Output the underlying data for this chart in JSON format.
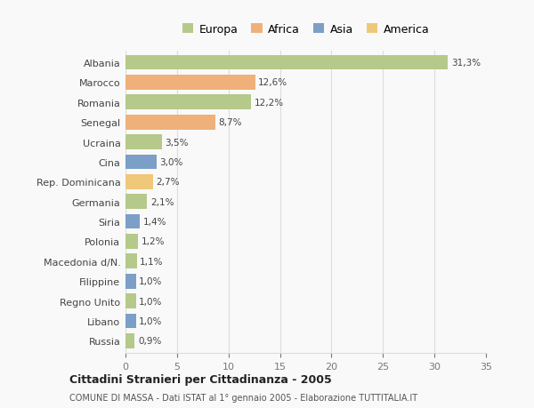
{
  "categories": [
    "Albania",
    "Marocco",
    "Romania",
    "Senegal",
    "Ucraina",
    "Cina",
    "Rep. Dominicana",
    "Germania",
    "Siria",
    "Polonia",
    "Macedonia d/N.",
    "Filippine",
    "Regno Unito",
    "Libano",
    "Russia"
  ],
  "values": [
    31.3,
    12.6,
    12.2,
    8.7,
    3.5,
    3.0,
    2.7,
    2.1,
    1.4,
    1.2,
    1.1,
    1.0,
    1.0,
    1.0,
    0.9
  ],
  "labels": [
    "31,3%",
    "12,6%",
    "12,2%",
    "8,7%",
    "3,5%",
    "3,0%",
    "2,7%",
    "2,1%",
    "1,4%",
    "1,2%",
    "1,1%",
    "1,0%",
    "1,0%",
    "1,0%",
    "0,9%"
  ],
  "colors": [
    "#b5c98a",
    "#f0b07a",
    "#b5c98a",
    "#f0b07a",
    "#b5c98a",
    "#7b9fc7",
    "#f0c87a",
    "#b5c98a",
    "#7b9fc7",
    "#b5c98a",
    "#b5c98a",
    "#7b9fc7",
    "#b5c98a",
    "#7b9fc7",
    "#b5c98a"
  ],
  "legend_labels": [
    "Europa",
    "Africa",
    "Asia",
    "America"
  ],
  "legend_colors": [
    "#b5c98a",
    "#f0b07a",
    "#7b9fc7",
    "#f0c87a"
  ],
  "xlim": [
    0,
    35
  ],
  "xticks": [
    0,
    5,
    10,
    15,
    20,
    25,
    30,
    35
  ],
  "title": "Cittadini Stranieri per Cittadinanza - 2005",
  "subtitle": "COMUNE DI MASSA - Dati ISTAT al 1° gennaio 2005 - Elaborazione TUTTITALIA.IT",
  "background_color": "#f9f9f9",
  "grid_color": "#dddddd",
  "bar_height": 0.75
}
